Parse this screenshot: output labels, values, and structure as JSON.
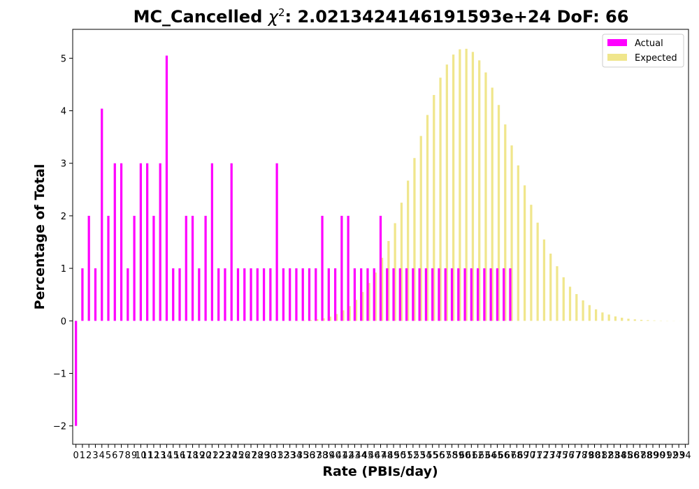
{
  "chart_data": {
    "type": "bar",
    "title": "MC_Cancelled χ²: 2.0213424146191593e+24 DoF: 66",
    "title_parts": {
      "prefix": "MC_Cancelled ",
      "chi": "χ",
      "sup": "2",
      "suffix": ": 2.0213424146191593e+24 DoF: 66"
    },
    "xlabel": "Rate (PBIs/day)",
    "ylabel": "Percentage of Total",
    "xlim": [
      -0.5,
      94.5
    ],
    "ylim": [
      -2.35,
      5.55
    ],
    "y_ticks": [
      -2,
      -1,
      0,
      1,
      2,
      3,
      4,
      5
    ],
    "x_ticks": [
      0,
      1,
      2,
      3,
      4,
      5,
      6,
      7,
      8,
      9,
      10,
      11,
      12,
      13,
      14,
      15,
      16,
      17,
      18,
      19,
      20,
      21,
      22,
      23,
      24,
      25,
      26,
      27,
      28,
      29,
      30,
      31,
      32,
      33,
      34,
      35,
      36,
      37,
      38,
      39,
      40,
      41,
      42,
      43,
      44,
      45,
      46,
      47,
      48,
      49,
      50,
      51,
      52,
      53,
      54,
      55,
      56,
      57,
      58,
      59,
      60,
      61,
      62,
      63,
      64,
      65,
      66,
      67,
      68,
      69,
      70,
      71,
      72,
      73,
      74,
      75,
      76,
      77,
      78,
      79,
      80,
      81,
      82,
      83,
      84,
      85,
      86,
      87,
      88,
      89,
      90,
      91,
      92,
      93,
      94
    ],
    "grid": false,
    "legend_position": "top-right",
    "series": [
      {
        "name": "Actual",
        "color": "#ff00ff",
        "x": [
          0,
          1,
          2,
          3,
          4,
          5,
          6,
          7,
          8,
          9,
          10,
          11,
          12,
          13,
          14,
          15,
          16,
          17,
          18,
          19,
          20,
          21,
          22,
          23,
          24,
          25,
          26,
          27,
          28,
          29,
          30,
          31,
          32,
          33,
          34,
          35,
          36,
          37,
          38,
          39,
          40,
          41,
          42,
          43,
          44,
          45,
          46,
          47,
          48,
          49,
          50,
          51,
          52,
          53,
          54,
          55,
          56,
          57,
          58,
          59,
          60,
          61,
          62,
          63,
          64,
          65,
          66,
          67
        ],
        "values": [
          -2,
          1,
          2,
          1,
          4.04,
          2,
          3,
          3,
          1,
          2,
          3,
          3,
          2,
          3,
          5.05,
          1,
          1,
          2,
          2,
          1,
          2,
          3,
          1,
          1,
          3,
          1,
          1,
          1,
          1,
          1,
          1,
          3,
          1,
          1,
          1,
          1,
          1,
          1,
          2,
          1,
          1,
          2,
          2,
          1,
          1,
          1,
          1,
          2,
          1,
          1,
          1,
          1,
          1,
          1,
          1,
          1,
          1,
          1,
          1,
          1,
          1,
          1,
          1,
          1,
          1,
          1,
          1,
          1
        ]
      },
      {
        "name": "Expected",
        "color": "#f0e68c",
        "x": [
          0,
          1,
          2,
          3,
          4,
          5,
          6,
          7,
          8,
          9,
          10,
          11,
          12,
          13,
          14,
          15,
          16,
          17,
          18,
          19,
          20,
          21,
          22,
          23,
          24,
          25,
          26,
          27,
          28,
          29,
          30,
          31,
          32,
          33,
          34,
          35,
          36,
          37,
          38,
          39,
          40,
          41,
          42,
          43,
          44,
          45,
          46,
          47,
          48,
          49,
          50,
          51,
          52,
          53,
          54,
          55,
          56,
          57,
          58,
          59,
          60,
          61,
          62,
          63,
          64,
          65,
          66,
          67,
          68,
          69,
          70,
          71,
          72,
          73,
          74,
          75,
          76,
          77,
          78,
          79,
          80,
          81,
          82,
          83,
          84,
          85,
          86,
          87,
          88,
          89,
          90,
          91,
          92,
          93,
          94
        ],
        "values": [
          0,
          0,
          0,
          0,
          0,
          0,
          0,
          0,
          0,
          0,
          0,
          0,
          0,
          0,
          0,
          0,
          0,
          0,
          0,
          0,
          0,
          0,
          0,
          0,
          0,
          0,
          0,
          0,
          0,
          0,
          0,
          0,
          0.001,
          0.002,
          0.004,
          0.008,
          0.015,
          0.03,
          0.05,
          0.08,
          0.13,
          0.2,
          0.28,
          0.4,
          0.55,
          0.72,
          0.92,
          1.2,
          1.52,
          1.86,
          2.25,
          2.67,
          3.1,
          3.52,
          3.92,
          4.3,
          4.63,
          4.88,
          5.07,
          5.17,
          5.18,
          5.12,
          4.96,
          4.73,
          4.44,
          4.11,
          3.74,
          3.34,
          2.96,
          2.58,
          2.21,
          1.87,
          1.55,
          1.28,
          1.04,
          0.83,
          0.65,
          0.51,
          0.39,
          0.3,
          0.22,
          0.16,
          0.12,
          0.085,
          0.06,
          0.04,
          0.028,
          0.019,
          0.013,
          0.008,
          0.005,
          0.003,
          0.002,
          0.001,
          0.001
        ]
      }
    ]
  }
}
